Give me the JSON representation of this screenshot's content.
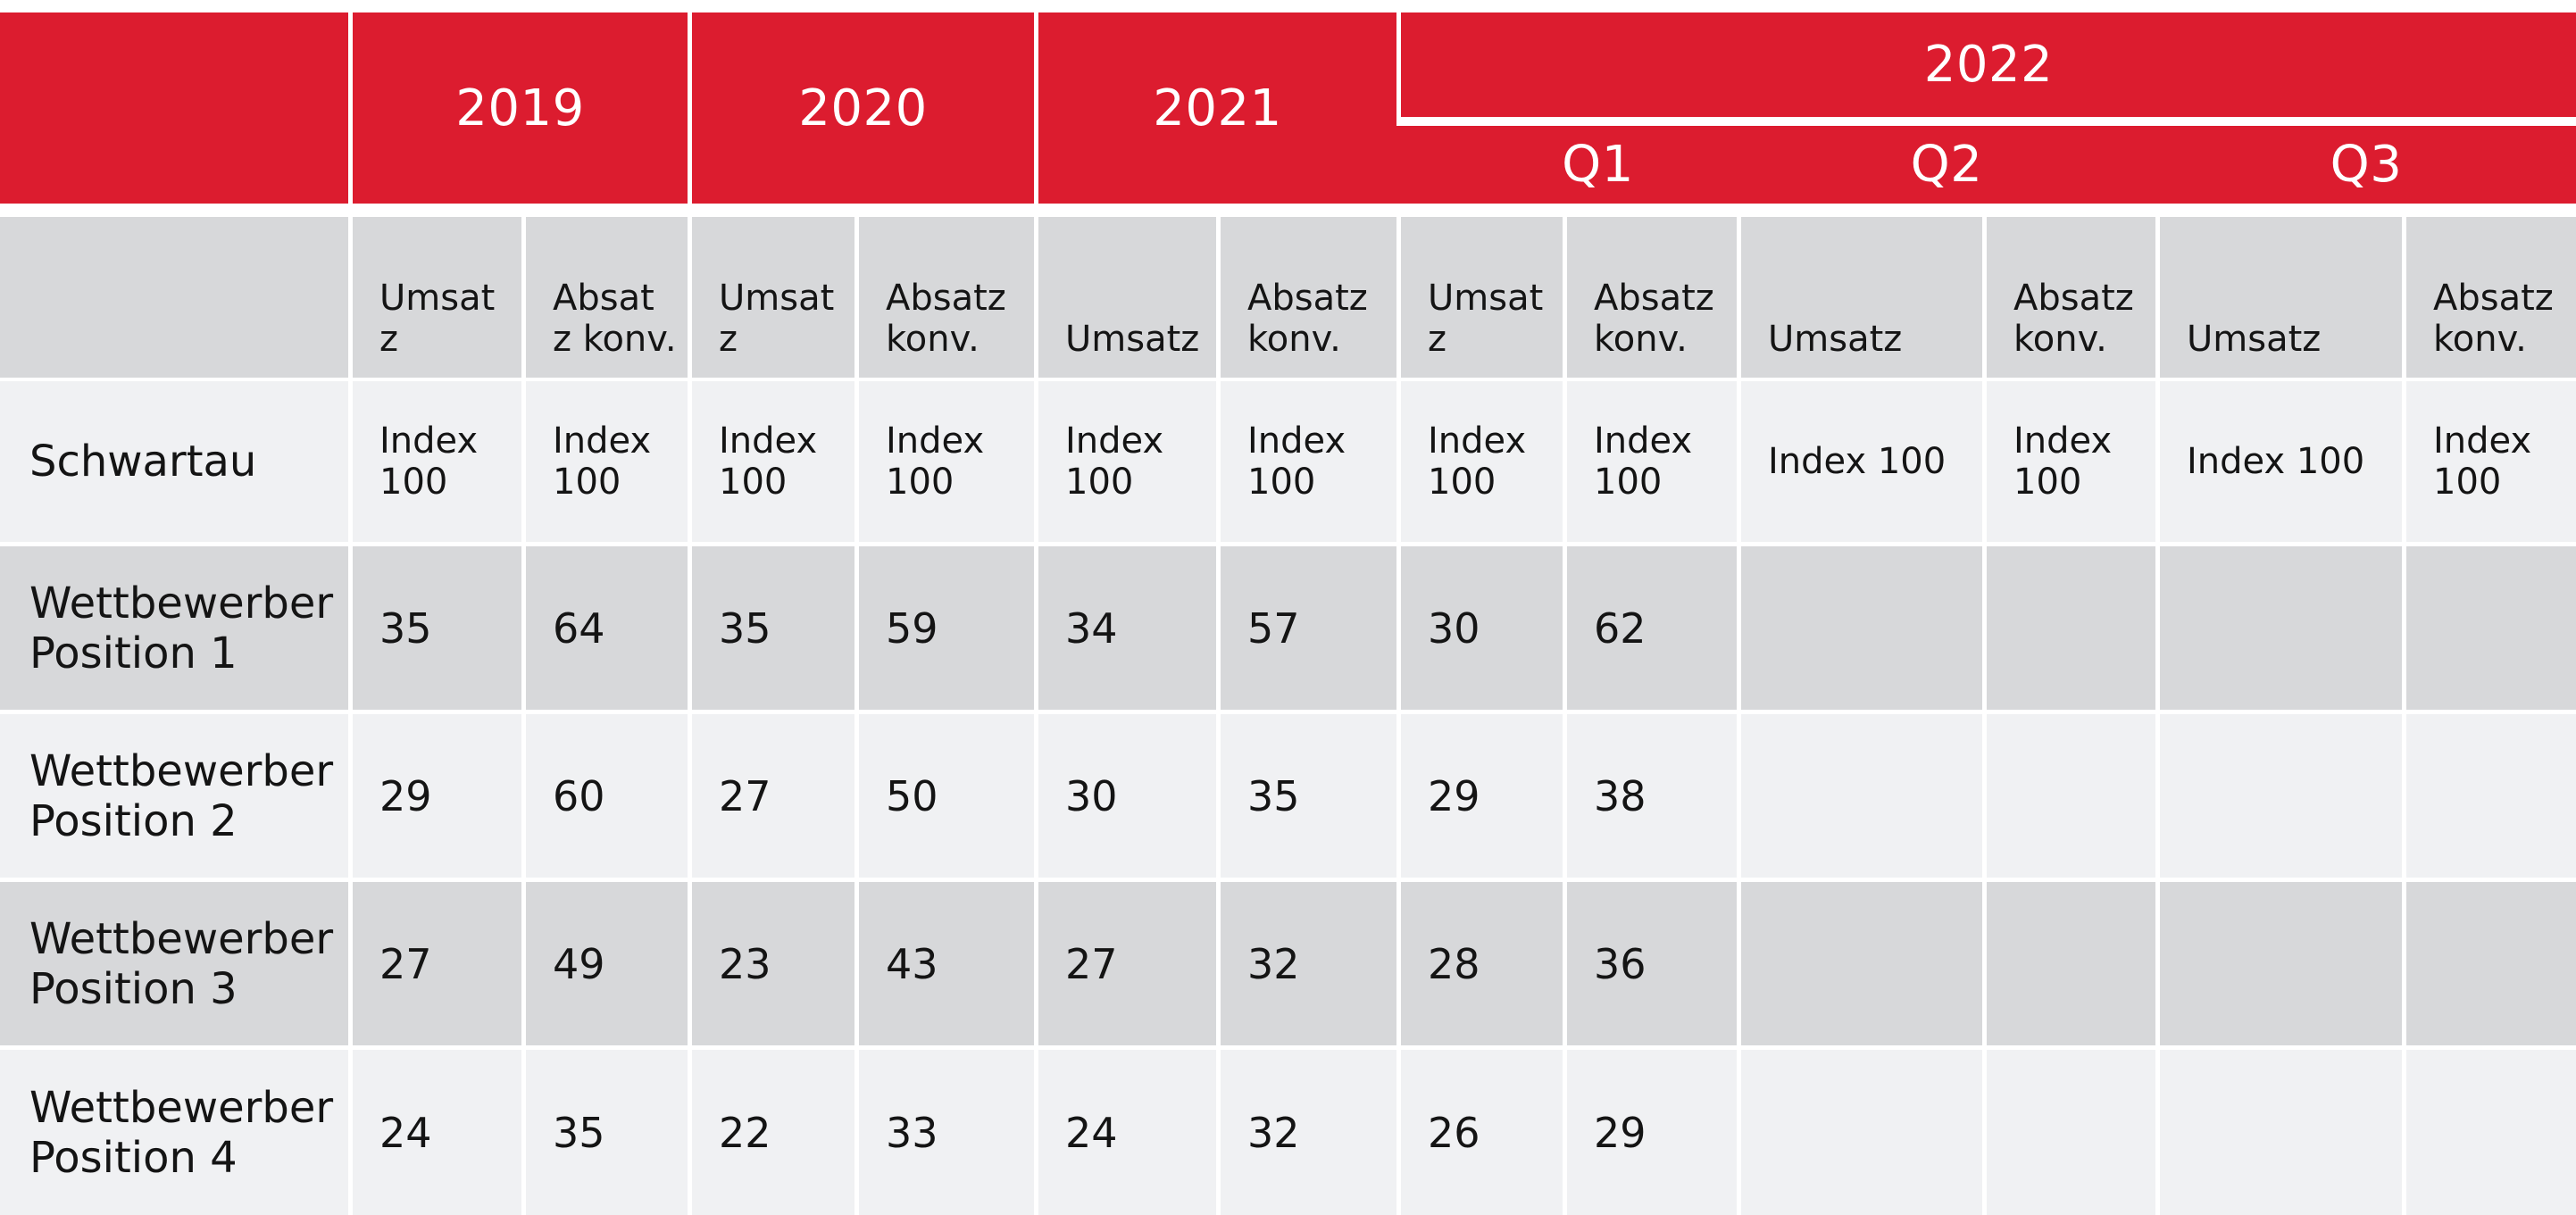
{
  "years": {
    "y2019": "2019",
    "y2020": "2020",
    "y2021": "2021",
    "y2022": "2022"
  },
  "quarters": {
    "q1": "Q1",
    "q2": "Q2",
    "q3": "Q3"
  },
  "subheaders": [
    "Umsat\nz",
    "Absat\nz konv.",
    "Umsat\nz",
    "Absatz\nkonv.",
    "Umsatz",
    "Absatz\nkonv.",
    "Umsat\nz",
    "Absatz\nkonv.",
    "Umsatz",
    "Absatz\nkonv.",
    "Umsatz",
    "Absatz\nkonv."
  ],
  "rows": [
    {
      "label": "Schwartau",
      "cells": [
        "Index\n100",
        "Index\n100",
        "Index\n100",
        "Index\n100",
        "Index\n100",
        "Index\n100",
        "Index\n100",
        "Index\n100",
        "Index 100",
        "Index\n100",
        "Index 100",
        "Index\n100"
      ]
    },
    {
      "label": "Wettbewerber\nPosition 1",
      "cells": [
        "35",
        "64",
        "35",
        "59",
        "34",
        "57",
        "30",
        "62",
        "",
        "",
        "",
        ""
      ]
    },
    {
      "label": "Wettbewerber\nPosition 2",
      "cells": [
        "29",
        "60",
        "27",
        "50",
        "30",
        "35",
        "29",
        "38",
        "",
        "",
        "",
        ""
      ]
    },
    {
      "label": "Wettbewerber\nPosition 3",
      "cells": [
        "27",
        "49",
        "23",
        "43",
        "27",
        "32",
        "28",
        "36",
        "",
        "",
        "",
        ""
      ]
    },
    {
      "label": "Wettbewerber\nPosition 4",
      "cells": [
        "24",
        "35",
        "22",
        "33",
        "24",
        "32",
        "26",
        "29",
        "",
        "",
        "",
        ""
      ]
    }
  ],
  "colors": {
    "header_red": "#dc1c2f",
    "band_grey": "#d7d8da",
    "band_light": "#f0f1f3"
  }
}
